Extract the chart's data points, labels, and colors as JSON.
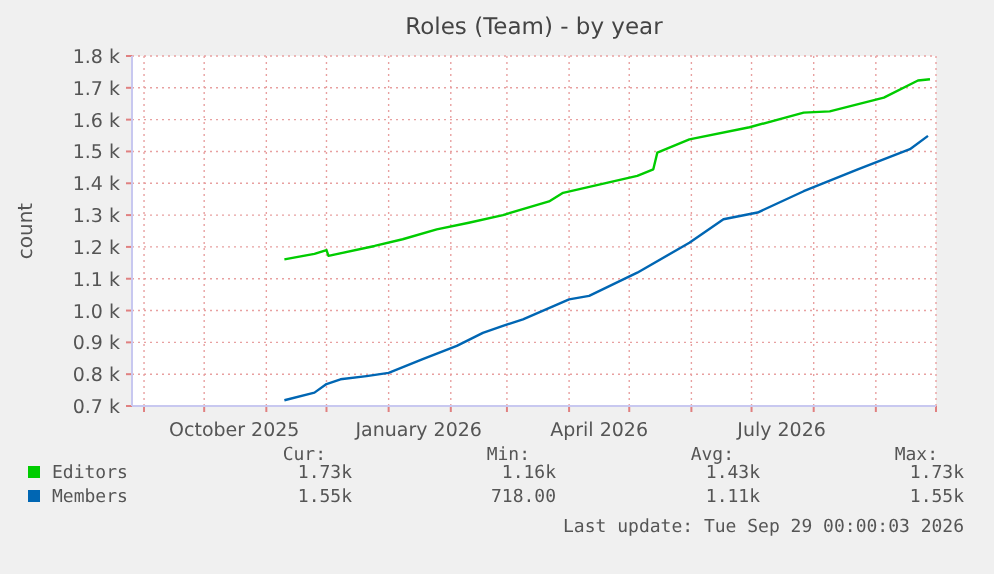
{
  "chart_data": {
    "type": "line",
    "title": "Roles (Team) - by year",
    "ylabel": "count",
    "xlim": [
      "2025-08-26",
      "2026-10-01"
    ],
    "xticks": [
      {
        "value": "2025-09-01",
        "label": null
      },
      {
        "value": "2025-10-01",
        "label": null
      },
      {
        "value": "2025-10-16",
        "label": "October 2025"
      },
      {
        "value": "2025-11-01",
        "label": null
      },
      {
        "value": "2025-12-01",
        "label": null
      },
      {
        "value": "2026-01-01",
        "label": null
      },
      {
        "value": "2026-01-16",
        "label": "January 2026"
      },
      {
        "value": "2026-02-01",
        "label": null
      },
      {
        "value": "2026-03-01",
        "label": null
      },
      {
        "value": "2026-04-01",
        "label": null
      },
      {
        "value": "2026-04-16",
        "label": "April 2026"
      },
      {
        "value": "2026-05-01",
        "label": null
      },
      {
        "value": "2026-06-01",
        "label": null
      },
      {
        "value": "2026-07-01",
        "label": null
      },
      {
        "value": "2026-07-16",
        "label": "July 2026"
      },
      {
        "value": "2026-08-01",
        "label": null
      },
      {
        "value": "2026-09-01",
        "label": null
      },
      {
        "value": "2026-10-01",
        "label": null
      }
    ],
    "ylim": [
      700,
      1800
    ],
    "yticks": [
      {
        "value": 700,
        "label": "0.7 k"
      },
      {
        "value": 800,
        "label": "0.8 k"
      },
      {
        "value": 900,
        "label": "0.9 k"
      },
      {
        "value": 1000,
        "label": "1.0 k"
      },
      {
        "value": 1100,
        "label": "1.1 k"
      },
      {
        "value": 1200,
        "label": "1.2 k"
      },
      {
        "value": 1300,
        "label": "1.3 k"
      },
      {
        "value": 1400,
        "label": "1.4 k"
      },
      {
        "value": 1500,
        "label": "1.5 k"
      },
      {
        "value": 1600,
        "label": "1.6 k"
      },
      {
        "value": 1700,
        "label": "1.7 k"
      },
      {
        "value": 1800,
        "label": "1.8 k"
      }
    ],
    "grid": true,
    "legend": "bottom left",
    "marker": "none",
    "line_style": "solid",
    "series": [
      {
        "name": "Editors",
        "color": "#00cc00",
        "x": [
          "2025-11-10",
          "2025-11-25",
          "2025-12-01",
          "2025-12-02",
          "2025-12-25",
          "2026-01-08",
          "2026-01-25",
          "2026-02-10",
          "2026-02-27",
          "2026-03-22",
          "2026-03-29",
          "2026-05-05",
          "2026-05-13",
          "2026-05-15",
          "2026-05-31",
          "2026-06-30",
          "2026-07-27",
          "2026-08-09",
          "2026-09-05",
          "2026-09-22",
          "2026-09-28"
        ],
        "values": [
          1161,
          1178,
          1190,
          1172,
          1203,
          1224,
          1255,
          1276,
          1300,
          1343,
          1370,
          1423,
          1444,
          1496,
          1538,
          1576,
          1622,
          1626,
          1669,
          1723,
          1727
        ]
      },
      {
        "name": "Members",
        "color": "#0066b3",
        "x": [
          "2025-11-10",
          "2025-11-25",
          "2025-12-01",
          "2025-12-08",
          "2025-12-21",
          "2026-01-01",
          "2026-01-18",
          "2026-02-04",
          "2026-02-17",
          "2026-02-27",
          "2026-03-09",
          "2026-04-01",
          "2026-04-11",
          "2026-05-05",
          "2026-05-31",
          "2026-06-17",
          "2026-07-04",
          "2026-07-27",
          "2026-08-23",
          "2026-09-18",
          "2026-09-27"
        ],
        "values": [
          718,
          742,
          769,
          784,
          794,
          804,
          847,
          889,
          930,
          952,
          972,
          1035,
          1046,
          1119,
          1213,
          1287,
          1308,
          1375,
          1444,
          1507,
          1549
        ]
      }
    ],
    "annotations": [
      "Cur:",
      "Min:",
      "Avg:",
      "Max:",
      "1.73k",
      "1.16k",
      "1.43k",
      "1.73k",
      "1.55k",
      "718.00",
      "1.11k",
      "1.55k",
      "Last update: Tue Sep 29 00:00:03 2026"
    ]
  }
}
